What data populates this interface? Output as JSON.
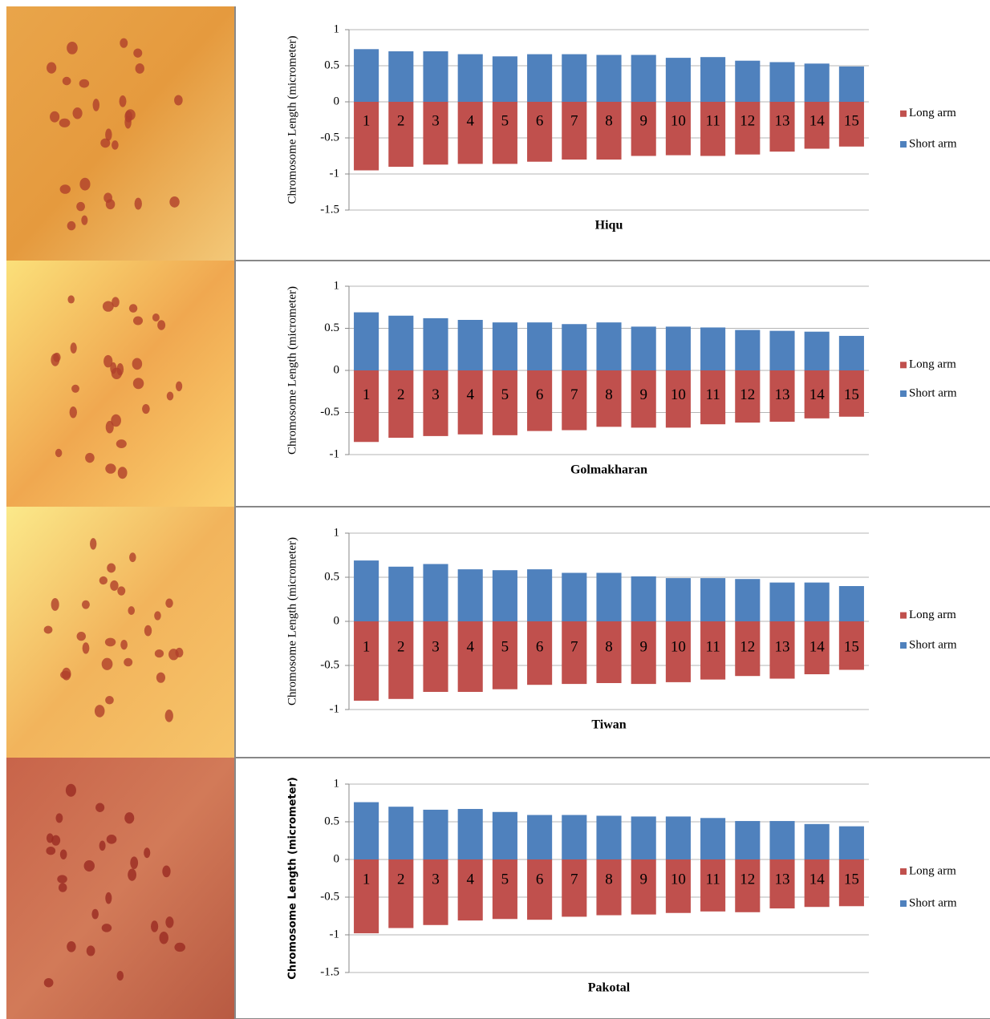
{
  "chart_data": [
    {
      "type": "bar",
      "stacked": true,
      "xlabel": "Hiqu",
      "ylabel": "Chromosome Length (micrometer)",
      "categories": [
        "1",
        "2",
        "3",
        "4",
        "5",
        "6",
        "7",
        "8",
        "9",
        "10",
        "11",
        "12",
        "13",
        "14",
        "15"
      ],
      "series": [
        {
          "name": "Long arm",
          "color": "#c0504d",
          "values": [
            -0.95,
            -0.9,
            -0.87,
            -0.86,
            -0.86,
            -0.83,
            -0.8,
            -0.8,
            -0.75,
            -0.74,
            -0.75,
            -0.73,
            -0.69,
            -0.65,
            -0.62
          ]
        },
        {
          "name": "Short arm",
          "color": "#4f81bd",
          "values": [
            0.73,
            0.7,
            0.7,
            0.66,
            0.63,
            0.66,
            0.66,
            0.65,
            0.65,
            0.61,
            0.62,
            0.57,
            0.55,
            0.53,
            0.49
          ]
        }
      ],
      "ylim": [
        -1.5,
        1
      ],
      "yticks": [
        -1.5,
        -1,
        -0.5,
        0,
        0.5,
        1
      ],
      "grid": true,
      "legend": "right"
    },
    {
      "type": "bar",
      "stacked": true,
      "xlabel": "Golmakharan",
      "ylabel": "Chromosome Length (micrometer)",
      "categories": [
        "1",
        "2",
        "3",
        "4",
        "5",
        "6",
        "7",
        "8",
        "9",
        "10",
        "11",
        "12",
        "13",
        "14",
        "15"
      ],
      "series": [
        {
          "name": "Long arm",
          "color": "#c0504d",
          "values": [
            -0.85,
            -0.8,
            -0.78,
            -0.76,
            -0.77,
            -0.72,
            -0.71,
            -0.67,
            -0.68,
            -0.68,
            -0.64,
            -0.62,
            -0.61,
            -0.57,
            -0.55
          ]
        },
        {
          "name": "Short arm",
          "color": "#4f81bd",
          "values": [
            0.69,
            0.65,
            0.62,
            0.6,
            0.57,
            0.57,
            0.55,
            0.57,
            0.52,
            0.52,
            0.51,
            0.48,
            0.47,
            0.46,
            0.41
          ]
        }
      ],
      "ylim": [
        -1,
        1
      ],
      "yticks": [
        -1,
        -0.5,
        0,
        0.5,
        1
      ],
      "grid": true,
      "legend": "right"
    },
    {
      "type": "bar",
      "stacked": true,
      "xlabel": "Tiwan",
      "ylabel": "Chromosome Length (micrometer)",
      "categories": [
        "1",
        "2",
        "3",
        "4",
        "5",
        "6",
        "7",
        "8",
        "9",
        "10",
        "11",
        "12",
        "13",
        "14",
        "15"
      ],
      "series": [
        {
          "name": "Long arm",
          "color": "#c0504d",
          "values": [
            -0.9,
            -0.88,
            -0.8,
            -0.8,
            -0.77,
            -0.72,
            -0.71,
            -0.7,
            -0.71,
            -0.69,
            -0.66,
            -0.62,
            -0.65,
            -0.6,
            -0.55
          ]
        },
        {
          "name": "Short arm",
          "color": "#4f81bd",
          "values": [
            0.69,
            0.62,
            0.65,
            0.59,
            0.58,
            0.59,
            0.55,
            0.55,
            0.51,
            0.49,
            0.49,
            0.48,
            0.44,
            0.44,
            0.4
          ]
        }
      ],
      "ylim": [
        -1,
        1
      ],
      "yticks": [
        -1,
        -0.5,
        0,
        0.5,
        1
      ],
      "grid": true,
      "legend": "right"
    },
    {
      "type": "bar",
      "stacked": true,
      "xlabel": "Pakotal",
      "ylabel": "Chromosome Length (micrometer)",
      "categories": [
        "1",
        "2",
        "3",
        "4",
        "5",
        "6",
        "7",
        "8",
        "9",
        "10",
        "11",
        "12",
        "13",
        "14",
        "15"
      ],
      "series": [
        {
          "name": "Long arm",
          "color": "#c0504d",
          "values": [
            -0.98,
            -0.91,
            -0.87,
            -0.81,
            -0.79,
            -0.8,
            -0.76,
            -0.74,
            -0.73,
            -0.71,
            -0.69,
            -0.7,
            -0.65,
            -0.63,
            -0.62
          ]
        },
        {
          "name": "Short arm",
          "color": "#4f81bd",
          "values": [
            0.76,
            0.7,
            0.66,
            0.67,
            0.63,
            0.59,
            0.59,
            0.58,
            0.57,
            0.57,
            0.55,
            0.51,
            0.51,
            0.47,
            0.44
          ]
        }
      ],
      "ylim": [
        -1.5,
        1
      ],
      "yticks": [
        -1.5,
        -1,
        -0.5,
        0,
        0.5,
        1
      ],
      "grid": true,
      "legend": "right",
      "ylabel_bold": true
    }
  ]
}
